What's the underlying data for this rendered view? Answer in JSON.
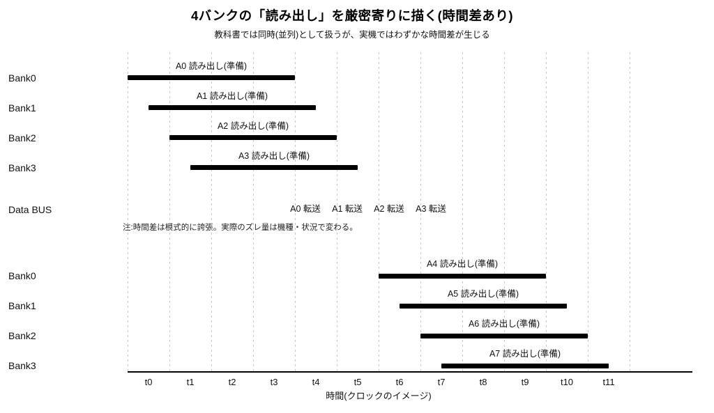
{
  "title": "4バンクの「読み出し」を厳密寄りに描く(時間差あり)",
  "subtitle": "教科書では同時(並列)として扱うが、実機ではわずかな時間差が生じる",
  "note": "注:時間差は模式的に誇張。実際のズレ量は機種・状況で変わる。",
  "xlabel": "時間(クロックのイメージ)",
  "colors": {
    "bar": "#000000",
    "grid": "#c6c6c6",
    "axis": "#000000",
    "text": "#111111",
    "background": "#ffffff"
  },
  "chart_data": {
    "type": "bar",
    "subtype": "gantt-timeline",
    "x_tick_labels": [
      "t0",
      "t1",
      "t2",
      "t3",
      "t4",
      "t5",
      "t6",
      "t7",
      "t8",
      "t9",
      "t10",
      "t11"
    ],
    "grid_positions": [
      0,
      1,
      2,
      3,
      4,
      5,
      6,
      7,
      8,
      9,
      10,
      11,
      12
    ],
    "x_range_units": [
      0,
      13.5
    ],
    "grid": "dashed-vertical",
    "rows": [
      {
        "label": "Bank0",
        "group": "first",
        "bar": {
          "name": "A0",
          "start": 0.0,
          "end": 4.0,
          "label": "A0 読み出し(準備)"
        }
      },
      {
        "label": "Bank1",
        "group": "first",
        "bar": {
          "name": "A1",
          "start": 0.5,
          "end": 4.5,
          "label": "A1 読み出し(準備)"
        }
      },
      {
        "label": "Bank2",
        "group": "first",
        "bar": {
          "name": "A2",
          "start": 1.0,
          "end": 5.0,
          "label": "A2 読み出し(準備)"
        }
      },
      {
        "label": "Bank3",
        "group": "first",
        "bar": {
          "name": "A3",
          "start": 1.5,
          "end": 5.5,
          "label": "A3 読み出し(準備)"
        }
      },
      {
        "label": "Data BUS",
        "group": "bus",
        "transfers": [
          {
            "label": "A0 転送",
            "center": 4.25
          },
          {
            "label": "A1 転送",
            "center": 5.25
          },
          {
            "label": "A2 転送",
            "center": 6.25
          },
          {
            "label": "A3 転送",
            "center": 7.25
          }
        ]
      },
      {
        "label": "Bank0",
        "group": "second",
        "bar": {
          "name": "A4",
          "start": 6.0,
          "end": 10.0,
          "label": "A4 読み出し(準備)"
        }
      },
      {
        "label": "Bank1",
        "group": "second",
        "bar": {
          "name": "A5",
          "start": 6.5,
          "end": 10.5,
          "label": "A5 読み出し(準備)"
        }
      },
      {
        "label": "Bank2",
        "group": "second",
        "bar": {
          "name": "A6",
          "start": 7.0,
          "end": 11.0,
          "label": "A6 読み出し(準備)"
        }
      },
      {
        "label": "Bank3",
        "group": "second",
        "bar": {
          "name": "A7",
          "start": 7.5,
          "end": 11.5,
          "label": "A7 読み出し(準備)"
        }
      }
    ]
  }
}
